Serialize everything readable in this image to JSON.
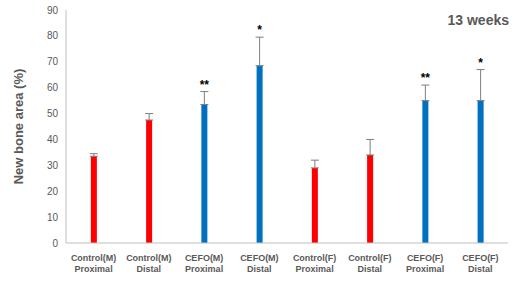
{
  "chart_data": {
    "type": "bar",
    "title": "13 weeks",
    "y_label": "New bone area (%)",
    "categories": [
      "Control(M) Proximal",
      "Control(M) Distal",
      "CEFO(M) Proximal",
      "CEFO(M) Distal",
      "Control(F) Proximal",
      "Control(F) Distal",
      "CEFO(F) Proximal",
      "CEFO(F) Distal"
    ],
    "values": [
      33.5,
      47.5,
      53.5,
      68.5,
      29,
      34,
      55,
      55
    ],
    "errors": [
      1,
      2.5,
      5,
      11,
      3,
      6,
      6,
      12
    ],
    "significance": [
      null,
      null,
      "**",
      "*",
      null,
      null,
      "**",
      "*"
    ],
    "colors": [
      "#ff0000",
      "#ff0000",
      "#0070c0",
      "#0070c0",
      "#ff0000",
      "#ff0000",
      "#0070c0",
      "#0070c0"
    ],
    "ylim": [
      0,
      90
    ],
    "yticks": [
      0,
      10,
      20,
      30,
      40,
      50,
      60,
      70,
      80,
      90
    ],
    "grid": false
  }
}
